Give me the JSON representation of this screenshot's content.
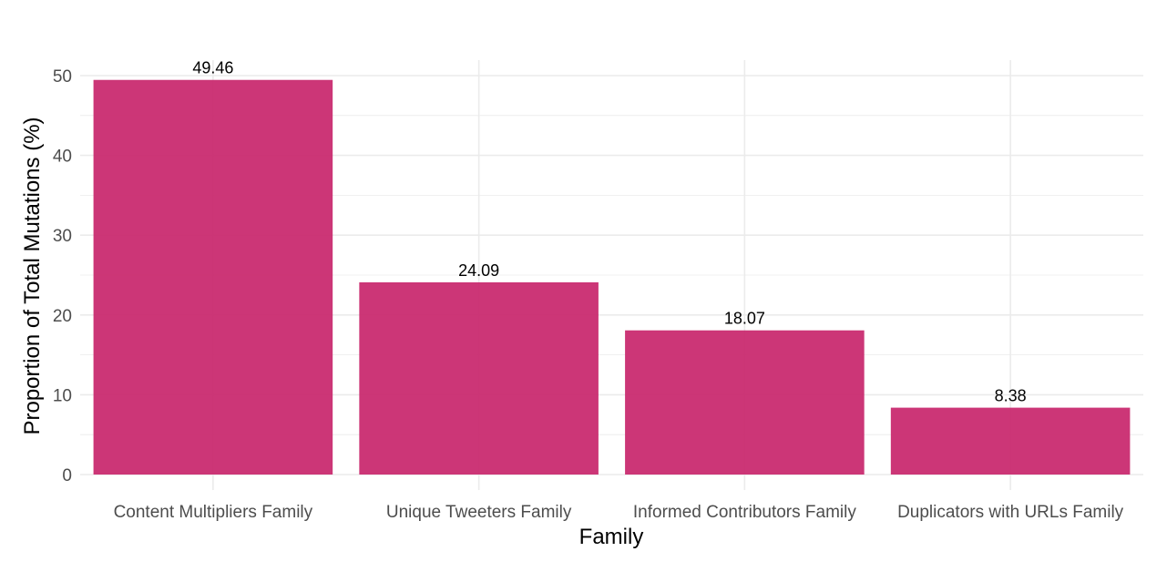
{
  "chart_data": {
    "type": "bar",
    "title": "",
    "xlabel": "Family",
    "ylabel": "Proportion of Total Mutations (%)",
    "categories": [
      "Content Multipliers Family",
      "Unique Tweeters Family",
      "Informed Contributors Family",
      "Duplicators with URLs Family"
    ],
    "values": [
      49.46,
      24.09,
      18.07,
      8.38
    ],
    "data_labels": [
      "49.46",
      "24.09",
      "18.07",
      "8.38"
    ],
    "ylim": [
      0,
      52
    ],
    "yticks": [
      0,
      10,
      20,
      30,
      40,
      50
    ],
    "grid": true,
    "legend": "none",
    "colors": {
      "bar": "#c8256b",
      "grid": "#ebebeb",
      "tick_text": "#4d4d4d"
    }
  }
}
